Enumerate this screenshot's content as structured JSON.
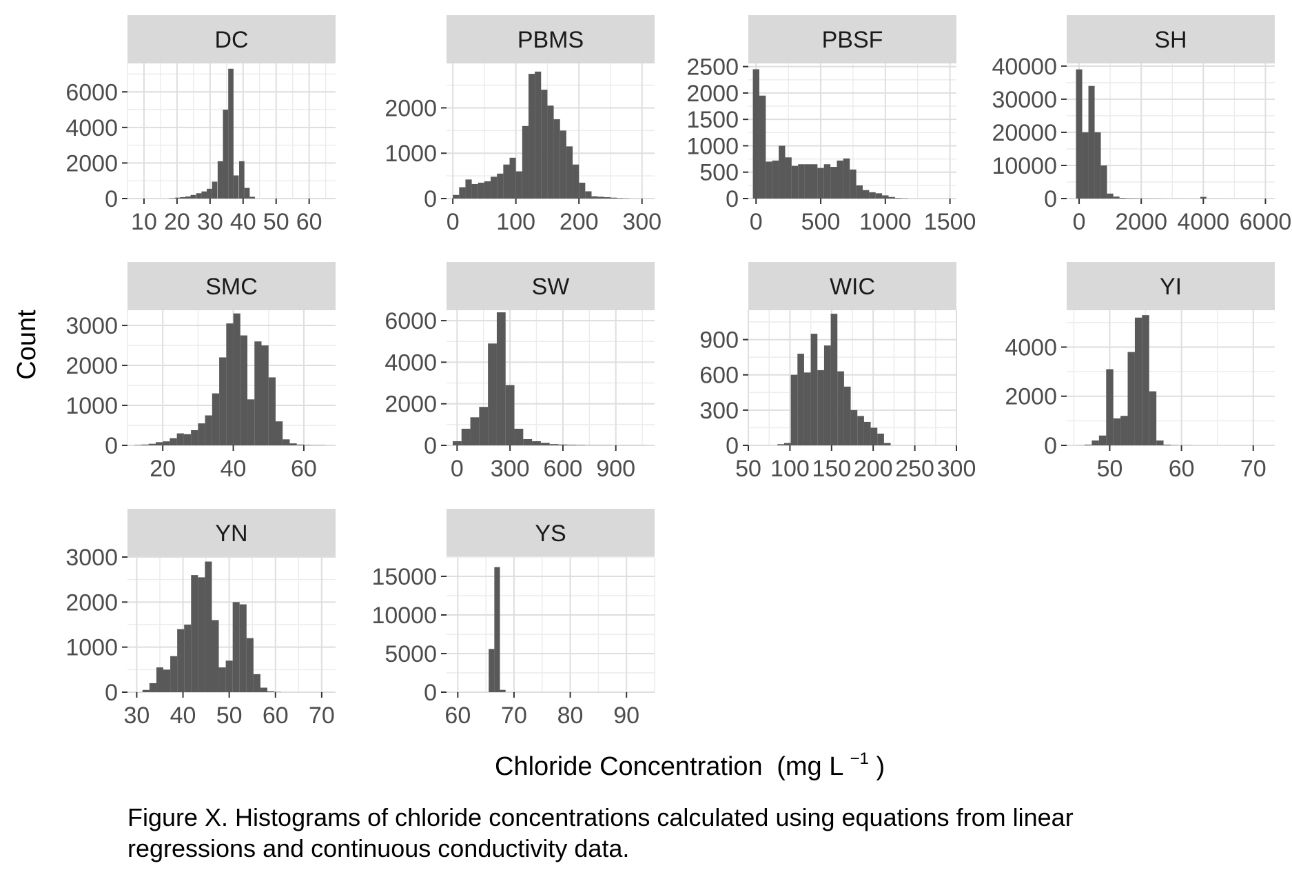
{
  "figure": {
    "xlabel_main": "Chloride Concentration",
    "xlabel_unit": "(mg L",
    "xlabel_sup": "−1",
    "xlabel_close": ")",
    "ylabel": "Count",
    "caption_line1": "Figure X. Histograms of chloride concentrations calculated using equations from linear",
    "caption_line2": "regressions and continuous conductivity data."
  },
  "colors": {
    "bar": "#595959",
    "panel_bg": "#ffffff",
    "strip_bg": "#d9d9d9",
    "grid_major": "#dedede",
    "grid_minor": "#ececec",
    "tick": "#333333"
  },
  "chart_data": [
    {
      "type": "bar",
      "facet": "DC",
      "x": [
        10.3,
        11.9,
        13.6,
        15.2,
        16.8,
        18.4,
        20.1,
        21.7,
        23.3,
        24.9,
        26.6,
        28.2,
        29.8,
        31.4,
        33.1,
        34.7,
        36.3,
        37.9,
        39.6,
        41.2,
        42.8,
        44.4,
        46.0,
        47.7
      ],
      "values": [
        0,
        0,
        0,
        0,
        0,
        20,
        50,
        80,
        120,
        200,
        300,
        400,
        550,
        950,
        2100,
        5000,
        7300,
        1300,
        2100,
        600,
        100,
        0,
        0,
        0
      ],
      "xticks": [
        "10",
        "20",
        "30",
        "40",
        "50",
        "60"
      ],
      "xlim": [
        5,
        68
      ],
      "yticks": [
        "0",
        "2000",
        "4000",
        "6000"
      ],
      "ylim": [
        0,
        7600
      ],
      "grid": true
    },
    {
      "type": "bar",
      "facet": "PBMS",
      "x": [
        5,
        15,
        25,
        35,
        45,
        55,
        65,
        75,
        85,
        95,
        105,
        115,
        125,
        135,
        145,
        155,
        165,
        175,
        185,
        195,
        205,
        215,
        225,
        235,
        245,
        255,
        265,
        275
      ],
      "values": [
        80,
        250,
        420,
        320,
        350,
        380,
        480,
        550,
        750,
        900,
        600,
        1600,
        2750,
        2800,
        2400,
        2050,
        1750,
        1500,
        1150,
        750,
        350,
        160,
        50,
        40,
        30,
        20,
        10,
        5
      ],
      "xticks": [
        "0",
        "100",
        "200",
        "300"
      ],
      "xlim": [
        -10,
        320
      ],
      "yticks": [
        "0",
        "1000",
        "2000"
      ],
      "ylim": [
        0,
        2980
      ],
      "grid": true
    },
    {
      "type": "bar",
      "facet": "PBSF",
      "x": [
        0,
        50,
        100,
        150,
        200,
        250,
        300,
        350,
        400,
        450,
        500,
        550,
        600,
        650,
        700,
        750,
        800,
        850,
        900,
        950,
        1000,
        1050,
        1100,
        1150
      ],
      "values": [
        2450,
        1950,
        700,
        720,
        1000,
        780,
        620,
        650,
        650,
        650,
        580,
        650,
        600,
        720,
        760,
        550,
        250,
        160,
        120,
        100,
        60,
        30,
        10,
        5
      ],
      "xticks": [
        "0",
        "500",
        "1000",
        "1500"
      ],
      "xlim": [
        -60,
        1550
      ],
      "yticks": [
        "0",
        "500",
        "1000",
        "1500",
        "2000",
        "2500"
      ],
      "ylim": [
        0,
        2560
      ],
      "grid": true
    },
    {
      "type": "bar",
      "facet": "SH",
      "x": [
        0,
        200,
        400,
        600,
        800,
        1000,
        1200,
        1400,
        1600,
        1800,
        2000,
        2200,
        2400,
        2600,
        2800,
        3000,
        3200,
        3400,
        3600,
        3800,
        4000,
        4200,
        4400,
        4600
      ],
      "values": [
        39000,
        20000,
        34000,
        20000,
        10000,
        1500,
        600,
        200,
        100,
        80,
        50,
        40,
        30,
        20,
        10,
        10,
        10,
        10,
        5,
        5,
        500,
        5,
        5,
        5
      ],
      "xticks": [
        "0",
        "2000",
        "4000",
        "6000"
      ],
      "xlim": [
        -400,
        6300
      ],
      "yticks": [
        "0",
        "10000",
        "20000",
        "30000",
        "40000"
      ],
      "ylim": [
        0,
        40800
      ],
      "grid": true
    },
    {
      "type": "bar",
      "facet": "SMC",
      "x": [
        13,
        15,
        17,
        19,
        21,
        23,
        25,
        27,
        29,
        31,
        33,
        35,
        37,
        39,
        41,
        43,
        45,
        47,
        49,
        51,
        53,
        55,
        57,
        59,
        61,
        63,
        65
      ],
      "values": [
        10,
        20,
        40,
        80,
        100,
        180,
        300,
        280,
        380,
        550,
        750,
        1300,
        2200,
        3050,
        3300,
        2750,
        1150,
        2600,
        2500,
        1700,
        600,
        150,
        50,
        20,
        10,
        5,
        5
      ],
      "xticks": [
        "20",
        "40",
        "60"
      ],
      "xlim": [
        10,
        69
      ],
      "yticks": [
        "0",
        "1000",
        "2000",
        "3000"
      ],
      "ylim": [
        0,
        3380
      ],
      "grid": true
    },
    {
      "type": "bar",
      "facet": "SW",
      "x": [
        0,
        50,
        100,
        150,
        200,
        250,
        300,
        350,
        400,
        450,
        500,
        550,
        600,
        650,
        700,
        750,
        800,
        850,
        900,
        950,
        1000,
        1050
      ],
      "values": [
        200,
        800,
        1350,
        1850,
        4900,
        6400,
        2900,
        800,
        300,
        200,
        120,
        60,
        40,
        30,
        20,
        10,
        10,
        10,
        5,
        5,
        5,
        5
      ],
      "xticks": [
        "0",
        "300",
        "600",
        "900"
      ],
      "xlim": [
        -60,
        1120
      ],
      "yticks": [
        "0",
        "2000",
        "4000",
        "6000"
      ],
      "ylim": [
        0,
        6500
      ],
      "grid": true
    },
    {
      "type": "bar",
      "facet": "WIC",
      "x": [
        65,
        73,
        81,
        89,
        97,
        105,
        113,
        121,
        129,
        137,
        145,
        153,
        161,
        169,
        177,
        185,
        193,
        201,
        209,
        217
      ],
      "values": [
        0,
        0,
        0,
        10,
        20,
        600,
        780,
        620,
        950,
        640,
        850,
        1120,
        630,
        500,
        300,
        250,
        200,
        150,
        100,
        20
      ],
      "xticks": [
        "50",
        "100",
        "150",
        "200",
        "250",
        "300"
      ],
      "xlim": [
        50,
        300
      ],
      "yticks": [
        "0",
        "300",
        "600",
        "900"
      ],
      "ylim": [
        0,
        1150
      ],
      "grid": true
    },
    {
      "type": "bar",
      "facet": "YI",
      "x": [
        45,
        46,
        47,
        48,
        49,
        50,
        51,
        52,
        53,
        54,
        55,
        56,
        57,
        58,
        59,
        60,
        61,
        62,
        63,
        64,
        65,
        66,
        67,
        68,
        69,
        70,
        71
      ],
      "values": [
        0,
        5,
        30,
        200,
        400,
        3100,
        1100,
        1200,
        3800,
        5200,
        5300,
        2200,
        200,
        30,
        10,
        5,
        5,
        0,
        0,
        0,
        0,
        0,
        0,
        0,
        0,
        0,
        0
      ],
      "xticks": [
        "50",
        "60",
        "70"
      ],
      "xlim": [
        44,
        73
      ],
      "yticks": [
        "0",
        "2000",
        "4000"
      ],
      "ylim": [
        0,
        5500
      ],
      "grid": true
    },
    {
      "type": "bar",
      "facet": "YN",
      "x": [
        32,
        33.5,
        35,
        36.5,
        38,
        39.5,
        41,
        42.5,
        44,
        45.5,
        47,
        48.5,
        50,
        51.5,
        53,
        54.5,
        56,
        57.5,
        59,
        60.5
      ],
      "values": [
        50,
        200,
        550,
        500,
        800,
        1400,
        1500,
        2600,
        2550,
        2900,
        1600,
        550,
        700,
        2000,
        1950,
        1200,
        400,
        100,
        20,
        5
      ],
      "xticks": [
        "30",
        "40",
        "50",
        "60",
        "70"
      ],
      "xlim": [
        28,
        73
      ],
      "yticks": [
        "0",
        "1000",
        "2000",
        "3000"
      ],
      "ylim": [
        0,
        3000
      ],
      "grid": true
    },
    {
      "type": "bar",
      "facet": "YS",
      "x": [
        64,
        65,
        66,
        67,
        68,
        69,
        70
      ],
      "values": [
        0,
        0,
        5600,
        16200,
        300,
        0,
        0
      ],
      "xticks": [
        "60",
        "70",
        "80",
        "90"
      ],
      "xlim": [
        58,
        95
      ],
      "yticks": [
        "0",
        "5000",
        "10000",
        "15000"
      ],
      "ylim": [
        0,
        17500
      ],
      "grid": true
    }
  ]
}
